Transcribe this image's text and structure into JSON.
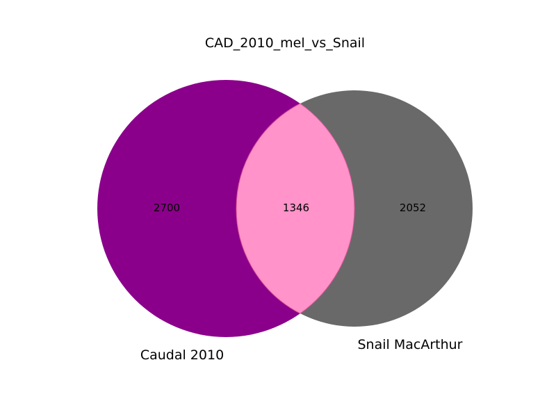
{
  "diagram": {
    "type": "venn2",
    "title": "CAD_2010_mel_vs_Snail",
    "sets": [
      {
        "id": "A",
        "label": "Caudal 2010",
        "only_count": "2700",
        "color": "#8b008b"
      },
      {
        "id": "B",
        "label": "Snail MacArthur",
        "only_count": "2052",
        "color": "#696969"
      }
    ],
    "intersection": {
      "count": "1346",
      "color": "#ff93ca",
      "outline_color": "#e0569a"
    }
  }
}
